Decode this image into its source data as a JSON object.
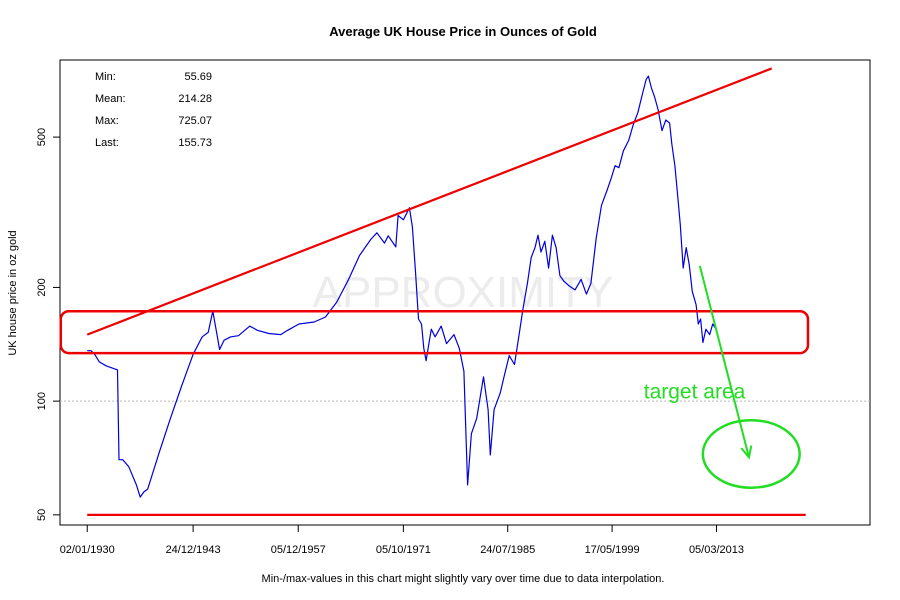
{
  "chart_data": {
    "type": "line",
    "title": "Average UK House Price in Ounces of Gold",
    "ylabel": "UK house price in oz gold",
    "xlabel": "",
    "footnote": "Min-/max-values in this chart might slightly vary over time due to data interpolation.",
    "yscale": "log",
    "ylim": [
      47,
      800
    ],
    "xlim": [
      1926.4,
      2033.5
    ],
    "yticks": [
      50,
      100,
      200,
      500
    ],
    "xticks": [
      {
        "label": "02/01/1930",
        "x": 1930.0
      },
      {
        "label": "24/12/1943",
        "x": 1944.0
      },
      {
        "label": "05/12/1957",
        "x": 1957.9
      },
      {
        "label": "05/10/1971",
        "x": 1971.8
      },
      {
        "label": "24/07/1985",
        "x": 1985.6
      },
      {
        "label": "17/05/1999",
        "x": 1999.4
      },
      {
        "label": "05/03/2013",
        "x": 2013.2
      }
    ],
    "stats": [
      {
        "label": "Min:",
        "value": "55.69"
      },
      {
        "label": "Mean:",
        "value": "214.28"
      },
      {
        "label": "Max:",
        "value": "725.07"
      },
      {
        "label": "Last:",
        "value": "155.73"
      }
    ],
    "watermark": "APPROXIMITY",
    "series": [
      {
        "name": "UK house price in oz gold",
        "color": "#0000dd",
        "points": [
          [
            1930.0,
            136
          ],
          [
            1930.5,
            136
          ],
          [
            1931.0,
            133
          ],
          [
            1931.6,
            127
          ],
          [
            1932.5,
            124
          ],
          [
            1934.0,
            121
          ],
          [
            1934.2,
            70
          ],
          [
            1934.7,
            70
          ],
          [
            1935.5,
            67
          ],
          [
            1936.5,
            60
          ],
          [
            1937.0,
            55.7
          ],
          [
            1937.5,
            57.5
          ],
          [
            1938.0,
            58.5
          ],
          [
            1938.6,
            64
          ],
          [
            1939.5,
            73
          ],
          [
            1941.0,
            90
          ],
          [
            1942.5,
            110
          ],
          [
            1944.0,
            133
          ],
          [
            1945.2,
            148
          ],
          [
            1946.0,
            152
          ],
          [
            1946.6,
            173
          ],
          [
            1947.1,
            152
          ],
          [
            1947.5,
            137
          ],
          [
            1948.1,
            145
          ],
          [
            1949.0,
            148
          ],
          [
            1950.0,
            149
          ],
          [
            1951.5,
            158
          ],
          [
            1952.5,
            154
          ],
          [
            1954.0,
            151
          ],
          [
            1955.6,
            150
          ],
          [
            1956.5,
            154
          ],
          [
            1958.0,
            160
          ],
          [
            1960.0,
            162
          ],
          [
            1961.5,
            167
          ],
          [
            1963.0,
            183
          ],
          [
            1964.5,
            209
          ],
          [
            1966.0,
            243
          ],
          [
            1967.5,
            268
          ],
          [
            1968.3,
            279
          ],
          [
            1969.3,
            262
          ],
          [
            1969.8,
            274
          ],
          [
            1970.8,
            256
          ],
          [
            1971.1,
            310
          ],
          [
            1971.8,
            302
          ],
          [
            1972.6,
            325
          ],
          [
            1973.0,
            289
          ],
          [
            1973.4,
            220
          ],
          [
            1973.8,
            165
          ],
          [
            1974.2,
            160
          ],
          [
            1974.5,
            138
          ],
          [
            1974.8,
            128
          ],
          [
            1975.5,
            155
          ],
          [
            1976.0,
            148
          ],
          [
            1976.8,
            158
          ],
          [
            1977.5,
            142
          ],
          [
            1978.5,
            150
          ],
          [
            1979.2,
            138
          ],
          [
            1979.8,
            120
          ],
          [
            1980.3,
            60
          ],
          [
            1980.8,
            82
          ],
          [
            1981.5,
            90
          ],
          [
            1982.4,
            116
          ],
          [
            1983.0,
            95
          ],
          [
            1983.3,
            72
          ],
          [
            1983.8,
            95
          ],
          [
            1984.6,
            105
          ],
          [
            1985.2,
            118
          ],
          [
            1985.8,
            132
          ],
          [
            1986.5,
            125
          ],
          [
            1987.1,
            150
          ],
          [
            1987.6,
            175
          ],
          [
            1988.2,
            205
          ],
          [
            1988.7,
            240
          ],
          [
            1989.2,
            255
          ],
          [
            1989.6,
            275
          ],
          [
            1990.0,
            248
          ],
          [
            1990.5,
            265
          ],
          [
            1991.0,
            225
          ],
          [
            1991.5,
            275
          ],
          [
            1992.0,
            255
          ],
          [
            1992.5,
            215
          ],
          [
            1993.0,
            208
          ],
          [
            1993.7,
            202
          ],
          [
            1994.5,
            197
          ],
          [
            1995.3,
            210
          ],
          [
            1996.0,
            192
          ],
          [
            1996.6,
            205
          ],
          [
            1997.3,
            270
          ],
          [
            1998.0,
            330
          ],
          [
            1998.7,
            360
          ],
          [
            1999.3,
            390
          ],
          [
            1999.8,
            420
          ],
          [
            2000.3,
            415
          ],
          [
            2000.9,
            460
          ],
          [
            2001.6,
            490
          ],
          [
            2002.2,
            540
          ],
          [
            2002.8,
            580
          ],
          [
            2003.4,
            650
          ],
          [
            2003.9,
            710
          ],
          [
            2004.2,
            725
          ],
          [
            2004.6,
            675
          ],
          [
            2005.0,
            640
          ],
          [
            2005.5,
            590
          ],
          [
            2006.0,
            520
          ],
          [
            2006.5,
            555
          ],
          [
            2007.0,
            545
          ],
          [
            2007.3,
            480
          ],
          [
            2007.7,
            420
          ],
          [
            2008.1,
            345
          ],
          [
            2008.4,
            295
          ],
          [
            2008.8,
            225
          ],
          [
            2009.2,
            255
          ],
          [
            2009.6,
            230
          ],
          [
            2010.0,
            195
          ],
          [
            2010.5,
            180
          ],
          [
            2010.8,
            160
          ],
          [
            2011.1,
            165
          ],
          [
            2011.4,
            143
          ],
          [
            2011.8,
            155
          ],
          [
            2012.3,
            150
          ],
          [
            2012.7,
            160
          ],
          [
            2013.1,
            155.73
          ]
        ]
      }
    ],
    "annotations": {
      "trend_line": {
        "color": "#ee0000",
        "from": [
          1930.0,
          150
        ],
        "to": [
          2020.5,
          760
        ]
      },
      "floor_line": {
        "color": "#ee0000",
        "from": [
          1930.0,
          50
        ],
        "to": [
          2025.0,
          50
        ]
      },
      "band": {
        "color": "#ee0000",
        "x0": 1926.5,
        "x1": 2025.3,
        "y0": 134,
        "y1": 173
      },
      "dotted_line": {
        "color": "#bbbbbb",
        "y": 100
      },
      "target": {
        "label": "target area",
        "color": "#22dd22",
        "arrow_from": [
          2011.0,
          228
        ],
        "arrow_to": [
          2017.5,
          71
        ],
        "ellipse_center": [
          2017.8,
          72
        ],
        "ellipse_x_radius_years": 6.4,
        "ellipse_y_span": [
          59,
          89
        ]
      }
    }
  }
}
